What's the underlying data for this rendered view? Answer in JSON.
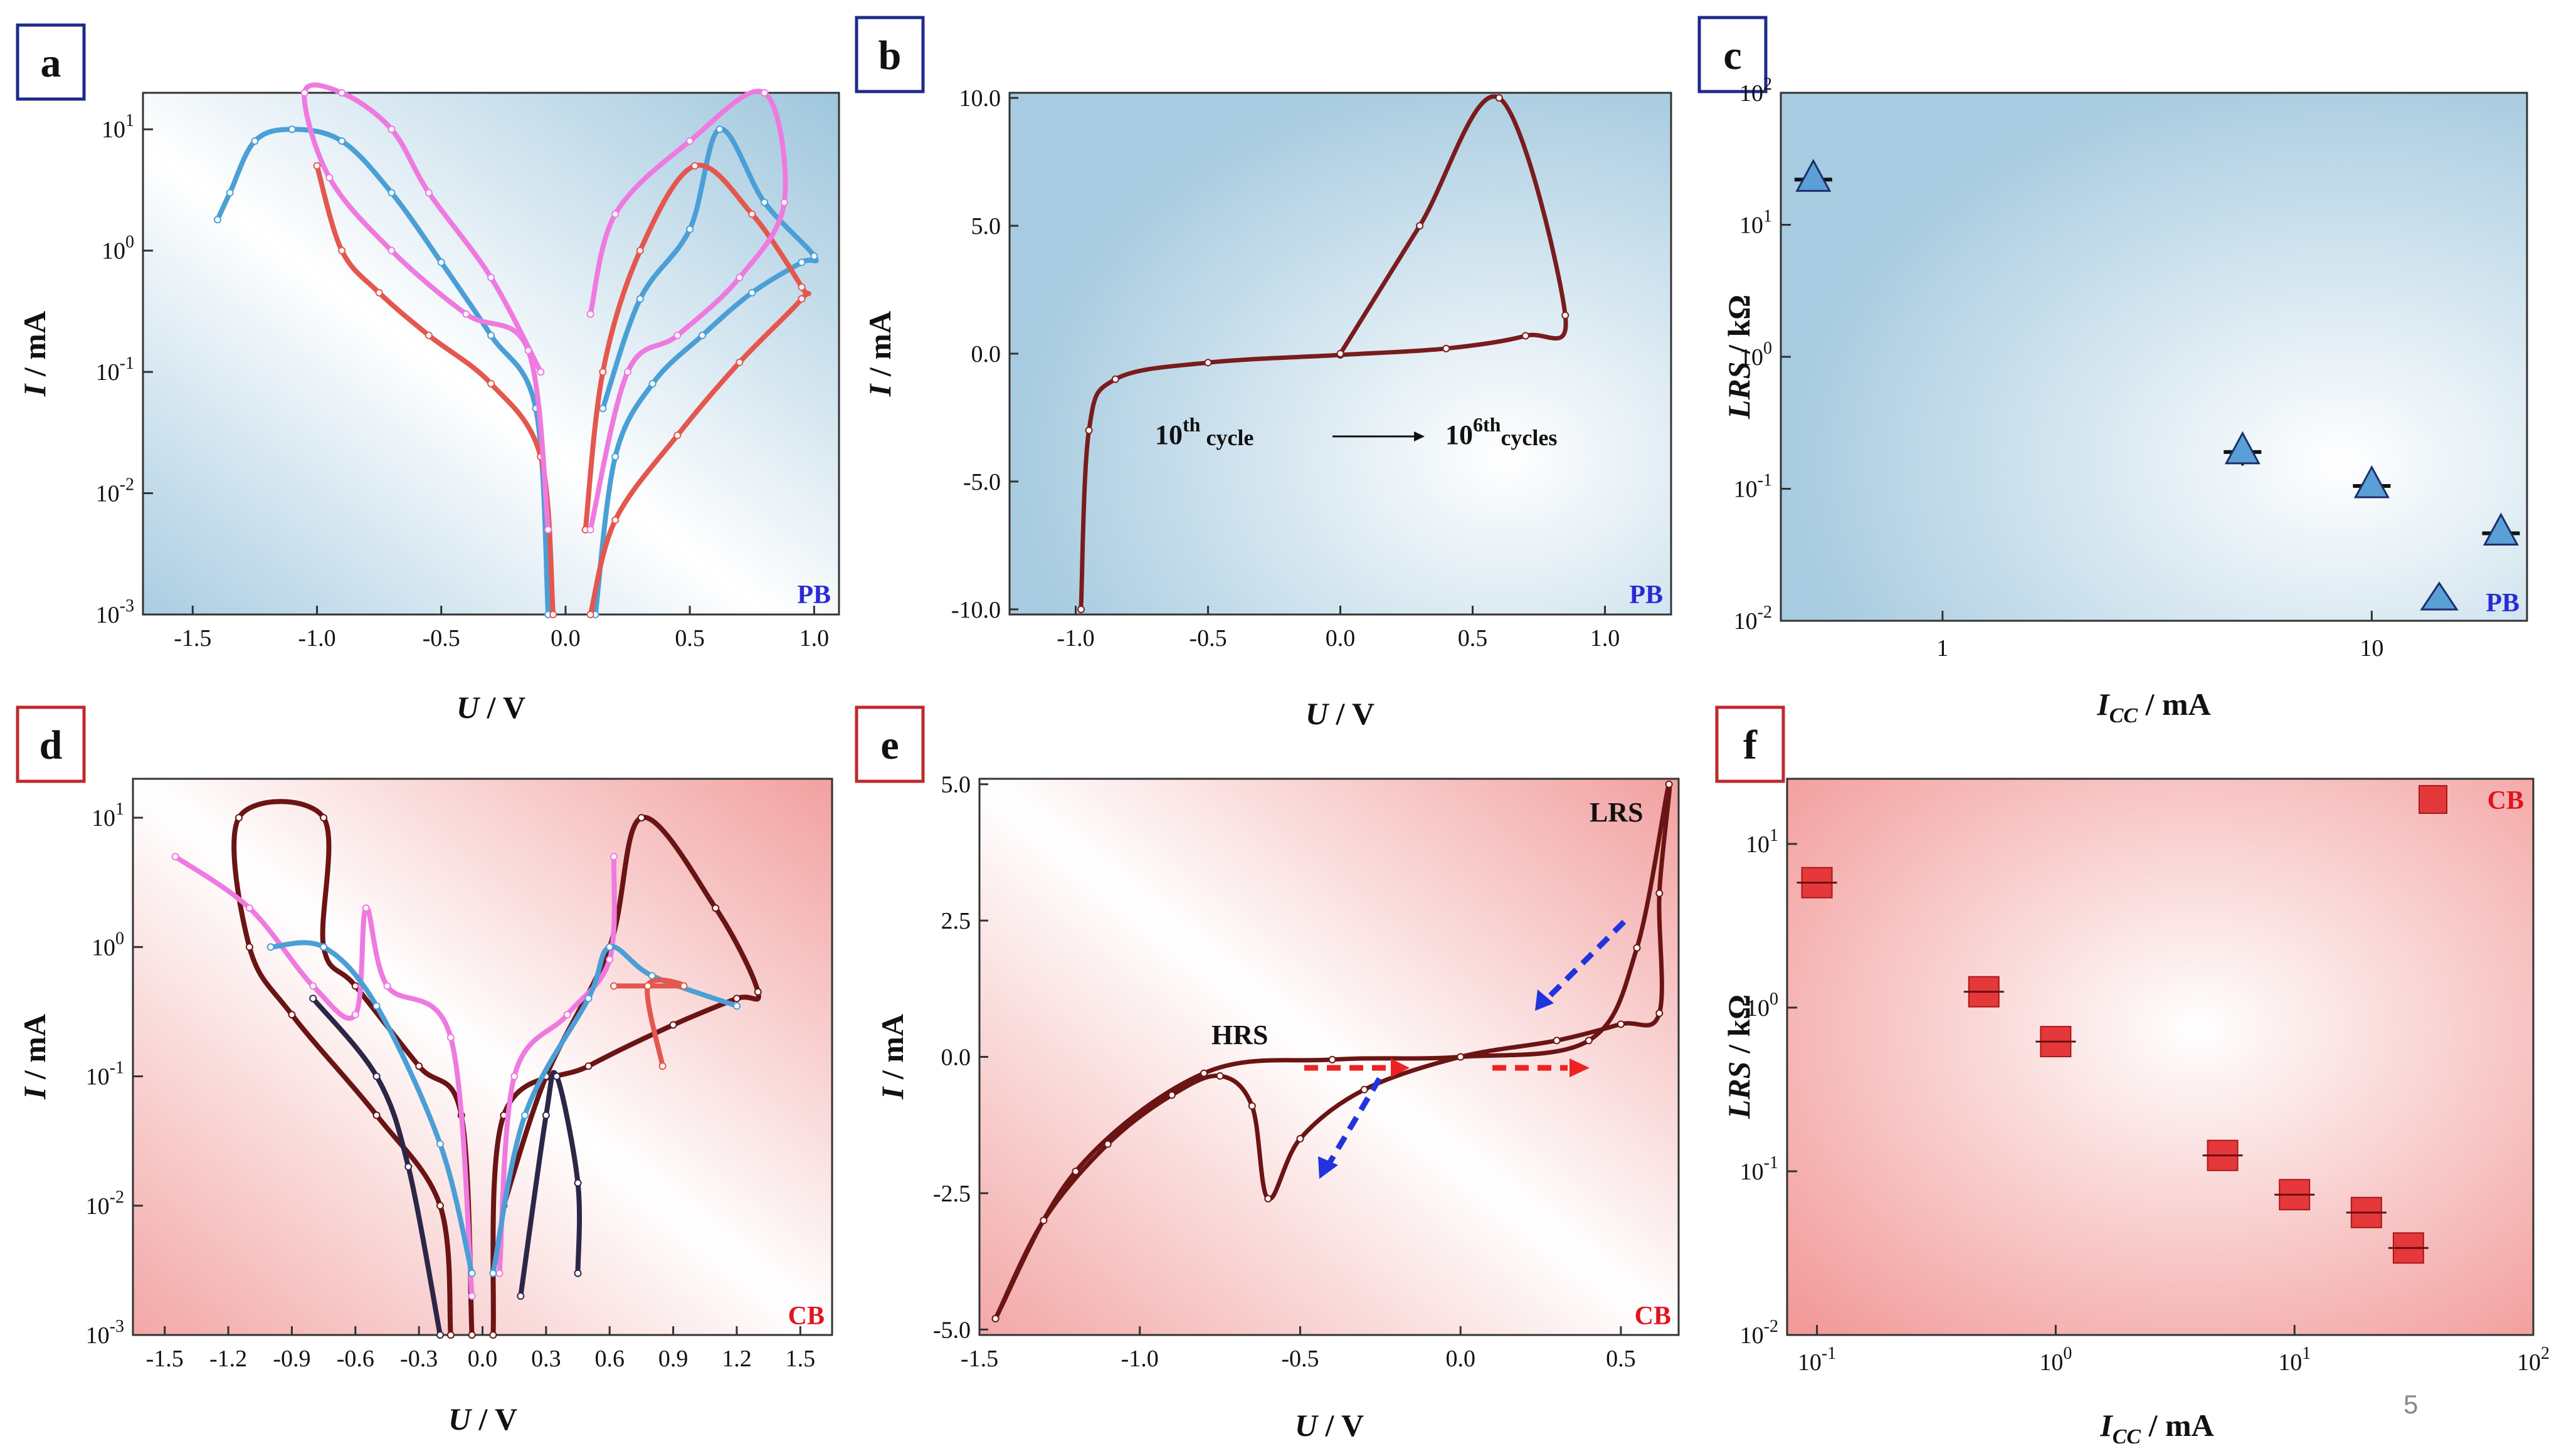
{
  "page_number": "5",
  "colors": {
    "blue_box": "#1f2a8c",
    "red_box": "#c0282d",
    "pb_tag": "#2a2ad6",
    "cb_tag": "#e0141e"
  },
  "chart_data": [
    {
      "id": "a",
      "label": "a",
      "type": "line",
      "scale": "log-y",
      "tag": "PB",
      "xlabel": "U / V",
      "ylabel": "I / mA",
      "xlim": [
        -1.7,
        1.1
      ],
      "ylim": [
        0.001,
        20
      ],
      "xticks": [
        -1.5,
        -1.0,
        -0.5,
        0.0,
        0.5,
        1.0
      ],
      "xtick_labels": [
        "-1.5",
        "-1.0",
        "-0.5",
        "0.0",
        "0.5",
        "1.0"
      ],
      "ytick_labels": [
        {
          "base": "10",
          "exp": "1",
          "v": 10
        },
        {
          "base": "10",
          "exp": "0",
          "v": 1
        },
        {
          "base": "10",
          "exp": "-1",
          "v": 0.1
        },
        {
          "base": "10",
          "exp": "-2",
          "v": 0.01
        },
        {
          "base": "10",
          "exp": "-3",
          "v": 0.001
        }
      ],
      "series": [
        {
          "name": "blue",
          "color": "#4a9fd6",
          "points": [
            [
              -1.4,
              1.8
            ],
            [
              -1.35,
              3
            ],
            [
              -1.25,
              8
            ],
            [
              -1.1,
              10
            ],
            [
              -0.9,
              8
            ],
            [
              -0.7,
              3
            ],
            [
              -0.5,
              0.8
            ],
            [
              -0.3,
              0.2
            ],
            [
              -0.12,
              0.05
            ],
            [
              -0.07,
              0.001
            ]
          ]
        },
        {
          "name": "blue2",
          "color": "#4a9fd6",
          "points": [
            [
              0.12,
              0.001
            ],
            [
              0.2,
              0.02
            ],
            [
              0.35,
              0.08
            ],
            [
              0.55,
              0.2
            ],
            [
              0.75,
              0.45
            ],
            [
              0.95,
              0.8
            ],
            [
              1.0,
              0.9
            ],
            [
              0.8,
              2.5
            ],
            [
              0.62,
              10
            ],
            [
              0.5,
              1.5
            ],
            [
              0.3,
              0.4
            ],
            [
              0.15,
              0.05
            ]
          ]
        },
        {
          "name": "red",
          "color": "#e4574e",
          "points": [
            [
              -0.05,
              0.001
            ],
            [
              -0.1,
              0.02
            ],
            [
              -0.3,
              0.08
            ],
            [
              -0.55,
              0.2
            ],
            [
              -0.75,
              0.45
            ],
            [
              -0.9,
              1
            ],
            [
              -1.0,
              5
            ]
          ]
        },
        {
          "name": "red2",
          "color": "#e4574e",
          "points": [
            [
              0.1,
              0.001
            ],
            [
              0.2,
              0.006
            ],
            [
              0.45,
              0.03
            ],
            [
              0.7,
              0.12
            ],
            [
              0.95,
              0.4
            ],
            [
              0.95,
              0.5
            ],
            [
              0.75,
              2
            ],
            [
              0.52,
              5
            ],
            [
              0.3,
              1
            ],
            [
              0.15,
              0.1
            ],
            [
              0.08,
              0.005
            ]
          ]
        },
        {
          "name": "pink",
          "color": "#ee7ae0",
          "points": [
            [
              -0.07,
              0.005
            ],
            [
              -0.15,
              0.15
            ],
            [
              -0.4,
              0.3
            ],
            [
              -0.7,
              1
            ],
            [
              -0.95,
              4
            ],
            [
              -1.05,
              20
            ],
            [
              -0.9,
              20
            ],
            [
              -0.7,
              10
            ],
            [
              -0.55,
              3
            ],
            [
              -0.3,
              0.6
            ],
            [
              -0.1,
              0.1
            ]
          ]
        },
        {
          "name": "pink2",
          "color": "#ee7ae0",
          "points": [
            [
              0.1,
              0.005
            ],
            [
              0.25,
              0.1
            ],
            [
              0.45,
              0.2
            ],
            [
              0.7,
              0.6
            ],
            [
              0.88,
              2.5
            ],
            [
              0.8,
              20
            ],
            [
              0.5,
              8
            ],
            [
              0.2,
              2
            ],
            [
              0.1,
              0.3
            ]
          ]
        }
      ]
    },
    {
      "id": "b",
      "label": "b",
      "type": "line",
      "scale": "linear",
      "tag": "PB",
      "xlabel": "U / V",
      "ylabel": "I / mA",
      "xlim": [
        -1.25,
        1.25
      ],
      "ylim": [
        -10.2,
        10.2
      ],
      "xticks": [
        -1.0,
        -0.5,
        0.0,
        0.5,
        1.0
      ],
      "xtick_labels": [
        "-1.0",
        "-0.5",
        "0.0",
        "0.5",
        "1.0"
      ],
      "yticks": [
        10,
        5,
        0,
        -5,
        -10
      ],
      "ytick_labels": [
        "10.0",
        "5.0",
        "0.0",
        "-5.0",
        "-10.0"
      ],
      "annotation": {
        "start_base": "10",
        "start_sup": "th",
        "start_sub": " cycle",
        "end_base": "10",
        "end_sup": "6th",
        "end_sub": "cycles"
      },
      "series": [
        {
          "name": "cycle",
          "color": "#7a1c1c",
          "points": [
            [
              -0.98,
              -10
            ],
            [
              -0.95,
              -3
            ],
            [
              -0.85,
              -1
            ],
            [
              -0.5,
              -0.35
            ],
            [
              0,
              -0.05
            ],
            [
              0.4,
              0.2
            ],
            [
              0.7,
              0.7
            ],
            [
              0.85,
              1.5
            ],
            [
              0.6,
              10
            ],
            [
              0.3,
              5
            ],
            [
              0,
              0
            ]
          ]
        }
      ]
    },
    {
      "id": "c",
      "label": "c",
      "type": "scatter",
      "scale": "log-log",
      "tag": "PB",
      "xlabel": "I_CC / mA",
      "ylabel": "LRS / kΩ",
      "xlim": [
        0.42,
        23
      ],
      "ylim": [
        0.01,
        100
      ],
      "xtick_labels": [
        {
          "text": "1",
          "v": 1
        },
        {
          "text": "10",
          "v": 10
        }
      ],
      "ytick_labels": [
        {
          "base": "10",
          "exp": "2",
          "v": 100
        },
        {
          "base": "10",
          "exp": "1",
          "v": 10
        },
        {
          "base": "10",
          "exp": "0",
          "v": 1
        },
        {
          "base": "10",
          "exp": "-1",
          "v": 0.1
        },
        {
          "base": "10",
          "exp": "-2",
          "v": 0.01
        }
      ],
      "x": [
        0.5,
        5,
        10,
        20
      ],
      "values": [
        22,
        0.19,
        0.105,
        0.046
      ],
      "err": [
        [
          18,
          25
        ],
        [
          0.15,
          0.22
        ],
        [
          0.09,
          0.12
        ],
        [
          0.038,
          0.052
        ]
      ]
    },
    {
      "id": "d",
      "label": "d",
      "type": "line",
      "scale": "log-y",
      "tag": "CB",
      "xlabel": "U / V",
      "ylabel": "I / mA",
      "xlim": [
        -1.65,
        1.65
      ],
      "ylim": [
        0.001,
        20
      ],
      "xticks": [
        -1.5,
        -1.2,
        -0.9,
        -0.6,
        -0.3,
        0.0,
        0.3,
        0.6,
        0.9,
        1.2,
        1.5
      ],
      "xtick_labels": [
        "-1.5",
        "-1.2",
        "-0.9",
        "-0.6",
        "-0.3",
        "0.0",
        "0.3",
        "0.6",
        "0.9",
        "1.2",
        "1.5"
      ],
      "ytick_labels": [
        {
          "base": "10",
          "exp": "1",
          "v": 10
        },
        {
          "base": "10",
          "exp": "0",
          "v": 1
        },
        {
          "base": "10",
          "exp": "-1",
          "v": 0.1
        },
        {
          "base": "10",
          "exp": "-2",
          "v": 0.01
        },
        {
          "base": "10",
          "exp": "-3",
          "v": 0.001
        }
      ],
      "series": [
        {
          "name": "maroon",
          "color": "#6b1414",
          "points": [
            [
              -0.05,
              0.001
            ],
            [
              -0.1,
              0.05
            ],
            [
              -0.3,
              0.12
            ],
            [
              -0.6,
              0.5
            ],
            [
              -0.75,
              1
            ],
            [
              -0.75,
              10
            ],
            [
              -1.15,
              10
            ],
            [
              -1.1,
              1
            ],
            [
              -0.9,
              0.3
            ],
            [
              -0.5,
              0.05
            ],
            [
              -0.2,
              0.01
            ],
            [
              -0.15,
              0.001
            ]
          ]
        },
        {
          "name": "maroon2",
          "color": "#6b1414",
          "points": [
            [
              0.05,
              0.001
            ],
            [
              0.1,
              0.05
            ],
            [
              0.5,
              0.12
            ],
            [
              0.9,
              0.25
            ],
            [
              1.2,
              0.4
            ],
            [
              1.3,
              0.45
            ],
            [
              1.1,
              2
            ],
            [
              0.75,
              10
            ],
            [
              0.6,
              1
            ],
            [
              0.3,
              0.1
            ],
            [
              0.1,
              0.01
            ]
          ]
        },
        {
          "name": "navy",
          "color": "#2c2647",
          "points": [
            [
              -0.2,
              0.001
            ],
            [
              -0.35,
              0.02
            ],
            [
              -0.5,
              0.1
            ],
            [
              -0.8,
              0.4
            ]
          ]
        },
        {
          "name": "navy2",
          "color": "#2c2647",
          "points": [
            [
              0.18,
              0.002
            ],
            [
              0.3,
              0.05
            ],
            [
              0.35,
              0.1
            ],
            [
              0.45,
              0.015
            ],
            [
              0.45,
              0.003
            ]
          ]
        },
        {
          "name": "pinkd",
          "color": "#ee7ae0",
          "points": [
            [
              -1.45,
              5
            ],
            [
              -1.1,
              2
            ],
            [
              -0.8,
              0.5
            ],
            [
              -0.6,
              0.3
            ],
            [
              -0.55,
              2
            ],
            [
              -0.45,
              0.5
            ],
            [
              -0.15,
              0.2
            ],
            [
              -0.05,
              0.002
            ]
          ]
        },
        {
          "name": "pinkd2",
          "color": "#ee7ae0",
          "points": [
            [
              0.08,
              0.003
            ],
            [
              0.15,
              0.1
            ],
            [
              0.4,
              0.3
            ],
            [
              0.6,
              0.8
            ],
            [
              0.62,
              5
            ]
          ]
        },
        {
          "name": "cyan",
          "color": "#4a9fd6",
          "points": [
            [
              -0.05,
              0.003
            ],
            [
              -0.2,
              0.03
            ],
            [
              -0.5,
              0.35
            ],
            [
              -0.75,
              1
            ],
            [
              -1.0,
              1
            ]
          ]
        },
        {
          "name": "cyan2",
          "color": "#4a9fd6",
          "points": [
            [
              0.05,
              0.003
            ],
            [
              0.2,
              0.05
            ],
            [
              0.5,
              0.4
            ],
            [
              0.6,
              1
            ],
            [
              0.8,
              0.6
            ],
            [
              1.2,
              0.35
            ]
          ]
        },
        {
          "name": "salmon",
          "color": "#e4574e",
          "points": [
            [
              0.62,
              0.5
            ],
            [
              0.95,
              0.5
            ],
            [
              0.78,
              0.5
            ],
            [
              0.85,
              0.12
            ]
          ]
        }
      ]
    },
    {
      "id": "e",
      "label": "e",
      "type": "line",
      "scale": "linear",
      "tag": "CB",
      "xlabel": "U / V",
      "ylabel": "I / mA",
      "xlim": [
        -1.5,
        0.68
      ],
      "ylim": [
        -5.1,
        5.1
      ],
      "xticks": [
        -1.5,
        -1.0,
        -0.5,
        0.0,
        0.5
      ],
      "xtick_labels": [
        "-1.5",
        "-1.0",
        "-0.5",
        "0.0",
        "0.5"
      ],
      "yticks": [
        5,
        2.5,
        0,
        -2.5,
        -5
      ],
      "ytick_labels": [
        "5.0",
        "2.5",
        "0.0",
        "-2.5",
        "-5.0"
      ],
      "labels": {
        "lrs": "LRS",
        "hrs": "HRS"
      },
      "series": [
        {
          "name": "loop",
          "color": "#6b1414",
          "points": [
            [
              -1.45,
              -4.8
            ],
            [
              -1.3,
              -3
            ],
            [
              -1.1,
              -1.6
            ],
            [
              -0.9,
              -0.7
            ],
            [
              -0.75,
              -0.35
            ],
            [
              -0.65,
              -0.9
            ],
            [
              -0.6,
              -2.6
            ],
            [
              -0.5,
              -1.5
            ],
            [
              -0.3,
              -0.6
            ],
            [
              0,
              0
            ],
            [
              0.3,
              0.3
            ],
            [
              0.5,
              0.6
            ],
            [
              0.62,
              0.8
            ],
            [
              0.62,
              3
            ],
            [
              0.65,
              5
            ],
            [
              0.55,
              2
            ],
            [
              0.4,
              0.3
            ],
            [
              0,
              0
            ],
            [
              -0.4,
              -0.05
            ],
            [
              -0.8,
              -0.3
            ],
            [
              -1.2,
              -2.1
            ],
            [
              -1.45,
              -4.8
            ]
          ]
        }
      ]
    },
    {
      "id": "f",
      "label": "f",
      "type": "scatter",
      "scale": "log-log",
      "tag": "CB",
      "xlabel": "I_CC / mA",
      "ylabel": "LRS / kΩ",
      "xlim": [
        0.075,
        100
      ],
      "ylim": [
        0.01,
        25
      ],
      "xtick_labels": [
        {
          "base": "10",
          "exp": "-1",
          "v": 0.1
        },
        {
          "base": "10",
          "exp": "0",
          "v": 1
        },
        {
          "base": "10",
          "exp": "1",
          "v": 10
        },
        {
          "base": "10",
          "exp": "2",
          "v": 100
        }
      ],
      "ytick_labels": [
        {
          "base": "10",
          "exp": "1",
          "v": 10
        },
        {
          "base": "10",
          "exp": "0",
          "v": 1
        },
        {
          "base": "10",
          "exp": "-1",
          "v": 0.1
        },
        {
          "base": "10",
          "exp": "-2",
          "v": 0.01
        }
      ],
      "x": [
        0.1,
        0.5,
        1,
        5,
        10,
        20,
        30
      ],
      "values": [
        5.8,
        1.25,
        0.62,
        0.125,
        0.072,
        0.056,
        0.034
      ],
      "err": [
        [
          5.2,
          6.4
        ],
        [
          1.1,
          1.4
        ],
        [
          0.55,
          0.7
        ],
        [
          0.11,
          0.14
        ],
        [
          0.064,
          0.08
        ],
        [
          0.05,
          0.062
        ],
        [
          0.028,
          0.039
        ]
      ]
    }
  ]
}
